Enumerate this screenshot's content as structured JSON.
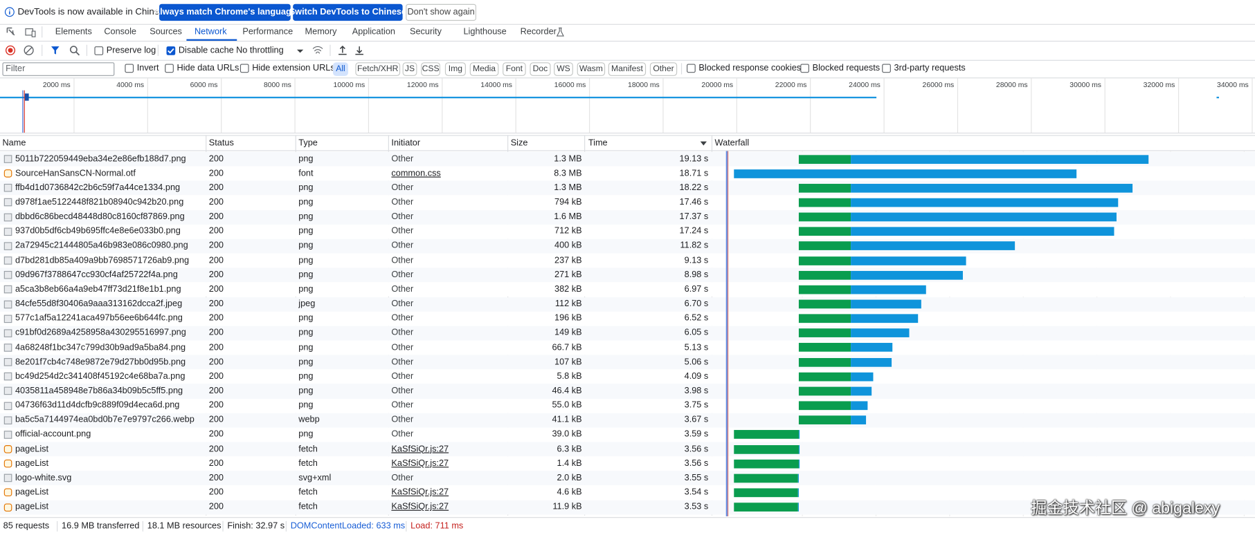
{
  "infobar": {
    "message": "DevTools is now available in Chinese!",
    "buttons": [
      "Always match Chrome's language",
      "Switch DevTools to Chinese",
      "Don't show again"
    ]
  },
  "tabs": {
    "items": [
      "Elements",
      "Console",
      "Sources",
      "Network",
      "Performance",
      "Memory",
      "Application",
      "Security",
      "Lighthouse",
      "Recorder"
    ],
    "selected": "Network"
  },
  "toolbar": {
    "checkboxes": [
      {
        "label": "Preserve log",
        "checked": false
      },
      {
        "label": "Disable cache",
        "checked": true
      }
    ],
    "throttling": "No throttling"
  },
  "filter": {
    "placeholder": "Filter",
    "checkboxes": [
      {
        "label": "Invert",
        "checked": false
      },
      {
        "label": "Hide data URLs",
        "checked": false
      },
      {
        "label": "Hide extension URLs",
        "checked": false
      }
    ],
    "types": [
      "All",
      "Fetch/XHR",
      "JS",
      "CSS",
      "Img",
      "Media",
      "Font",
      "Doc",
      "WS",
      "Wasm",
      "Manifest",
      "Other"
    ],
    "selected_type": "All",
    "more_checkboxes": [
      {
        "label": "Blocked response cookies",
        "checked": false
      },
      {
        "label": "Blocked requests",
        "checked": false
      },
      {
        "label": "3rd-party requests",
        "checked": false
      }
    ]
  },
  "overview": {
    "ticks": [
      "2000 ms",
      "4000 ms",
      "6000 ms",
      "8000 ms",
      "10000 ms",
      "12000 ms",
      "14000 ms",
      "16000 ms",
      "18000 ms",
      "20000 ms",
      "22000 ms",
      "24000 ms",
      "26000 ms",
      "28000 ms",
      "30000 ms",
      "32000 ms",
      "34000 ms"
    ]
  },
  "table": {
    "columns": [
      "Name",
      "Status",
      "Type",
      "Initiator",
      "Size",
      "Time",
      "Waterfall"
    ],
    "sorted_column": 5,
    "waterfall_xlim": [
      0,
      29.6
    ],
    "rows": [
      {
        "name": "5011b722059449eba34e2e86efb188d7.png",
        "status": 200,
        "type": "png",
        "initiator": {
          "text": "Other",
          "link": false
        },
        "size": "1.3 MB",
        "time": {
          "value": 19.13,
          "label": "19.13 s"
        },
        "start": 4.67,
        "waiting": 2.84
      },
      {
        "name": "SourceHanSansCN-Normal.otf",
        "status": 200,
        "type": "font",
        "initiator": {
          "text": "common.css",
          "link": true
        },
        "size": "8.3 MB",
        "time": {
          "value": 18.71,
          "label": "18.71 s"
        },
        "start": 1.14,
        "waiting": 0
      },
      {
        "name": "ffb4d1d0736842c2b6c59f7a44ce1334.png",
        "status": 200,
        "type": "png",
        "initiator": {
          "text": "Other",
          "link": false
        },
        "size": "1.3 MB",
        "time": {
          "value": 18.22,
          "label": "18.22 s"
        },
        "start": 4.67,
        "waiting": 2.84
      },
      {
        "name": "d978f1ae5122448f821b08940c942b20.png",
        "status": 200,
        "type": "png",
        "initiator": {
          "text": "Other",
          "link": false
        },
        "size": "794 kB",
        "time": {
          "value": 17.46,
          "label": "17.46 s"
        },
        "start": 4.67,
        "waiting": 2.84
      },
      {
        "name": "dbbd6c86becd48448d80c8160cf87869.png",
        "status": 200,
        "type": "png",
        "initiator": {
          "text": "Other",
          "link": false
        },
        "size": "1.6 MB",
        "time": {
          "value": 17.37,
          "label": "17.37 s"
        },
        "start": 4.67,
        "waiting": 2.84
      },
      {
        "name": "937d0b5df6cb49b695ffc4e8e6e033b0.png",
        "status": 200,
        "type": "png",
        "initiator": {
          "text": "Other",
          "link": false
        },
        "size": "712 kB",
        "time": {
          "value": 17.24,
          "label": "17.24 s"
        },
        "start": 4.67,
        "waiting": 2.84
      },
      {
        "name": "2a72945c21444805a46b983e086c0980.png",
        "status": 200,
        "type": "png",
        "initiator": {
          "text": "Other",
          "link": false
        },
        "size": "400 kB",
        "time": {
          "value": 11.82,
          "label": "11.82 s"
        },
        "start": 4.67,
        "waiting": 2.84
      },
      {
        "name": "d7bd281db85a409a9bb7698571726ab9.png",
        "status": 200,
        "type": "png",
        "initiator": {
          "text": "Other",
          "link": false
        },
        "size": "237 kB",
        "time": {
          "value": 9.13,
          "label": "9.13 s"
        },
        "start": 4.67,
        "waiting": 2.84
      },
      {
        "name": "09d967f3788647cc930cf4af25722f4a.png",
        "status": 200,
        "type": "png",
        "initiator": {
          "text": "Other",
          "link": false
        },
        "size": "271 kB",
        "time": {
          "value": 8.98,
          "label": "8.98 s"
        },
        "start": 4.67,
        "waiting": 2.84
      },
      {
        "name": "a5ca3b8eb66a4a9eb47ff73d21f8e1b1.png",
        "status": 200,
        "type": "png",
        "initiator": {
          "text": "Other",
          "link": false
        },
        "size": "382 kB",
        "time": {
          "value": 6.97,
          "label": "6.97 s"
        },
        "start": 4.67,
        "waiting": 2.84
      },
      {
        "name": "84cfe55d8f30406a9aaa313162dcca2f.jpeg",
        "status": 200,
        "type": "jpeg",
        "initiator": {
          "text": "Other",
          "link": false
        },
        "size": "112 kB",
        "time": {
          "value": 6.7,
          "label": "6.70 s"
        },
        "start": 4.67,
        "waiting": 2.84
      },
      {
        "name": "577c1af5a12241aca497b56ee6b644fc.png",
        "status": 200,
        "type": "png",
        "initiator": {
          "text": "Other",
          "link": false
        },
        "size": "196 kB",
        "time": {
          "value": 6.52,
          "label": "6.52 s"
        },
        "start": 4.67,
        "waiting": 2.84
      },
      {
        "name": "c91bf0d2689a4258958a430295516997.png",
        "status": 200,
        "type": "png",
        "initiator": {
          "text": "Other",
          "link": false
        },
        "size": "149 kB",
        "time": {
          "value": 6.05,
          "label": "6.05 s"
        },
        "start": 4.67,
        "waiting": 2.84
      },
      {
        "name": "4a68248f1bc347c799d30b9ad9a5ba84.png",
        "status": 200,
        "type": "png",
        "initiator": {
          "text": "Other",
          "link": false
        },
        "size": "66.7 kB",
        "time": {
          "value": 5.13,
          "label": "5.13 s"
        },
        "start": 4.67,
        "waiting": 2.84
      },
      {
        "name": "8e201f7cb4c748e9872e79d27bb0d95b.png",
        "status": 200,
        "type": "png",
        "initiator": {
          "text": "Other",
          "link": false
        },
        "size": "107 kB",
        "time": {
          "value": 5.06,
          "label": "5.06 s"
        },
        "start": 4.67,
        "waiting": 2.84
      },
      {
        "name": "bc49d254d2c341408f45192c4e68ba7a.png",
        "status": 200,
        "type": "png",
        "initiator": {
          "text": "Other",
          "link": false
        },
        "size": "5.8 kB",
        "time": {
          "value": 4.09,
          "label": "4.09 s"
        },
        "start": 4.67,
        "waiting": 2.84
      },
      {
        "name": "4035811a458948e7b86a34b09b5c5ff5.png",
        "status": 200,
        "type": "png",
        "initiator": {
          "text": "Other",
          "link": false
        },
        "size": "46.4 kB",
        "time": {
          "value": 3.98,
          "label": "3.98 s"
        },
        "start": 4.67,
        "waiting": 2.84
      },
      {
        "name": "04736f63d11d4dcfb9c889f09d4eca6d.png",
        "status": 200,
        "type": "png",
        "initiator": {
          "text": "Other",
          "link": false
        },
        "size": "55.0 kB",
        "time": {
          "value": 3.75,
          "label": "3.75 s"
        },
        "start": 4.67,
        "waiting": 2.84
      },
      {
        "name": "ba5c5a7144974ea0bd0b7e7e9797c266.webp",
        "status": 200,
        "type": "webp",
        "initiator": {
          "text": "Other",
          "link": false
        },
        "size": "41.1 kB",
        "time": {
          "value": 3.67,
          "label": "3.67 s"
        },
        "start": 4.67,
        "waiting": 2.84
      },
      {
        "name": "official-account.png",
        "status": 200,
        "type": "png",
        "initiator": {
          "text": "Other",
          "link": false
        },
        "size": "39.0 kB",
        "time": {
          "value": 3.59,
          "label": "3.59 s"
        },
        "start": 1.14,
        "waiting": 3.54
      },
      {
        "name": "pageList",
        "status": 200,
        "type": "fetch",
        "initiator": {
          "text": "KaSfSiQr.js:27",
          "link": true
        },
        "size": "6.3 kB",
        "time": {
          "value": 3.56,
          "label": "3.56 s"
        },
        "start": 1.14,
        "waiting": 3.54
      },
      {
        "name": "pageList",
        "status": 200,
        "type": "fetch",
        "initiator": {
          "text": "KaSfSiQr.js:27",
          "link": true
        },
        "size": "1.4 kB",
        "time": {
          "value": 3.56,
          "label": "3.56 s"
        },
        "start": 1.14,
        "waiting": 3.54
      },
      {
        "name": "logo-white.svg",
        "status": 200,
        "type": "svg+xml",
        "initiator": {
          "text": "Other",
          "link": false
        },
        "size": "2.0 kB",
        "time": {
          "value": 3.55,
          "label": "3.55 s"
        },
        "start": 1.14,
        "waiting": 3.5
      },
      {
        "name": "pageList",
        "status": 200,
        "type": "fetch",
        "initiator": {
          "text": "KaSfSiQr.js:27",
          "link": true
        },
        "size": "4.6 kB",
        "time": {
          "value": 3.54,
          "label": "3.54 s"
        },
        "start": 1.14,
        "waiting": 3.5
      },
      {
        "name": "pageList",
        "status": 200,
        "type": "fetch",
        "initiator": {
          "text": "KaSfSiQr.js:27",
          "link": true
        },
        "size": "11.9 kB",
        "time": {
          "value": 3.53,
          "label": "3.53 s"
        },
        "start": 1.14,
        "waiting": 3.5
      }
    ]
  },
  "status": {
    "items": [
      {
        "text": "85 requests",
        "color": "#202124"
      },
      {
        "text": "16.9 MB transferred",
        "color": "#202124"
      },
      {
        "text": "18.1 MB resources",
        "color": "#202124"
      },
      {
        "text": "Finish: 32.97 s",
        "color": "#202124"
      },
      {
        "text": "DOMContentLoaded: 633 ms",
        "color": "#1a5fd6"
      },
      {
        "text": "Load: 711 ms",
        "color": "#c5221f"
      }
    ]
  },
  "watermark": "掘金技术社区 @ abigalexy"
}
